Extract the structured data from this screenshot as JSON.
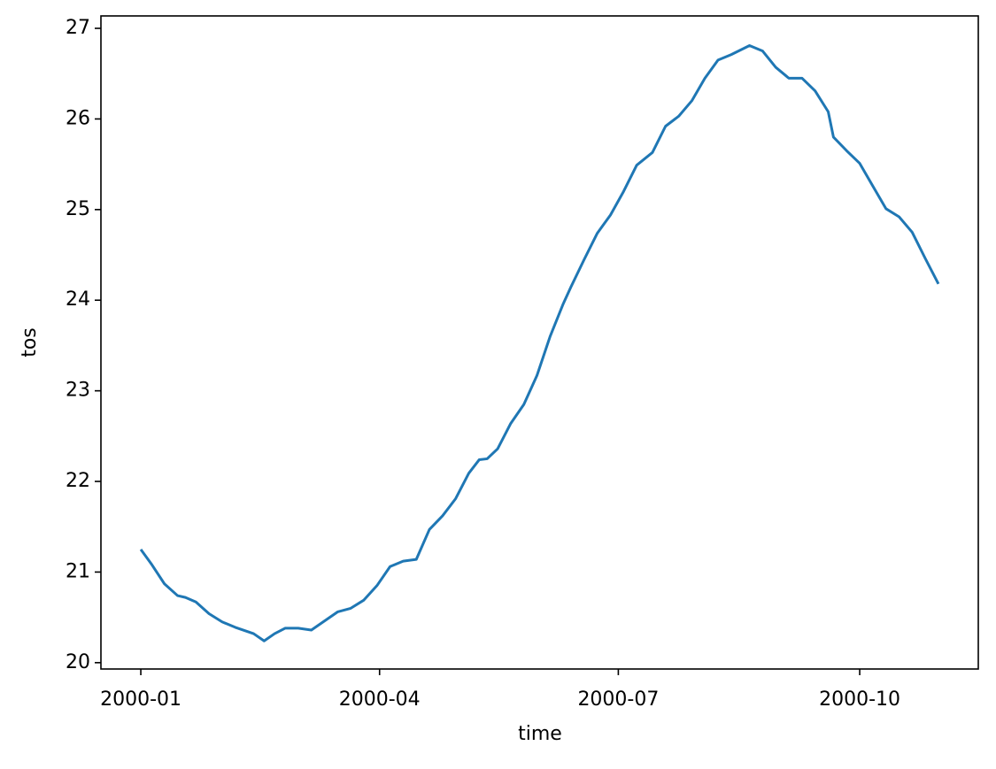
{
  "chart_data": {
    "type": "line",
    "xlabel": "time",
    "ylabel": "tos",
    "x": [
      0,
      4,
      9,
      14,
      17,
      21,
      26,
      31,
      36,
      43,
      47,
      51,
      55,
      60,
      65,
      70,
      75,
      80,
      85,
      90,
      95,
      100,
      105,
      110,
      115,
      120,
      125,
      129,
      132,
      136,
      141,
      146,
      151,
      156,
      161,
      164,
      169,
      174,
      179,
      184,
      189,
      195,
      200,
      205,
      210,
      215,
      220,
      225,
      232,
      237,
      242,
      247,
      252,
      257,
      262,
      264,
      269,
      274,
      279,
      284,
      289,
      294,
      299,
      304
    ],
    "series": [
      {
        "color": "#1f77b4",
        "values": [
          21.25,
          21.09,
          20.87,
          20.74,
          20.72,
          20.67,
          20.54,
          20.45,
          20.39,
          20.32,
          20.24,
          20.32,
          20.38,
          20.38,
          20.36,
          20.46,
          20.56,
          20.6,
          20.69,
          20.85,
          21.06,
          21.12,
          21.14,
          21.47,
          21.62,
          21.81,
          22.09,
          22.24,
          22.25,
          22.36,
          22.64,
          22.85,
          23.17,
          23.6,
          23.96,
          24.15,
          24.45,
          24.74,
          24.94,
          25.2,
          25.49,
          25.63,
          25.92,
          26.03,
          26.2,
          26.45,
          26.65,
          26.71,
          26.81,
          26.75,
          26.57,
          26.45,
          26.45,
          26.31,
          26.08,
          25.8,
          25.65,
          25.51,
          25.26,
          25.01,
          24.92,
          24.75,
          24.46,
          24.18
        ]
      }
    ],
    "xlim": [
      -15.2,
      319.2
    ],
    "xticks": [
      {
        "value": 0,
        "label": "2000-01"
      },
      {
        "value": 91,
        "label": "2000-04"
      },
      {
        "value": 182,
        "label": "2000-07"
      },
      {
        "value": 274,
        "label": "2000-10"
      }
    ],
    "ylim": [
      19.93,
      27.137
    ],
    "yticks": [
      20,
      21,
      22,
      23,
      24,
      25,
      26,
      27
    ]
  }
}
